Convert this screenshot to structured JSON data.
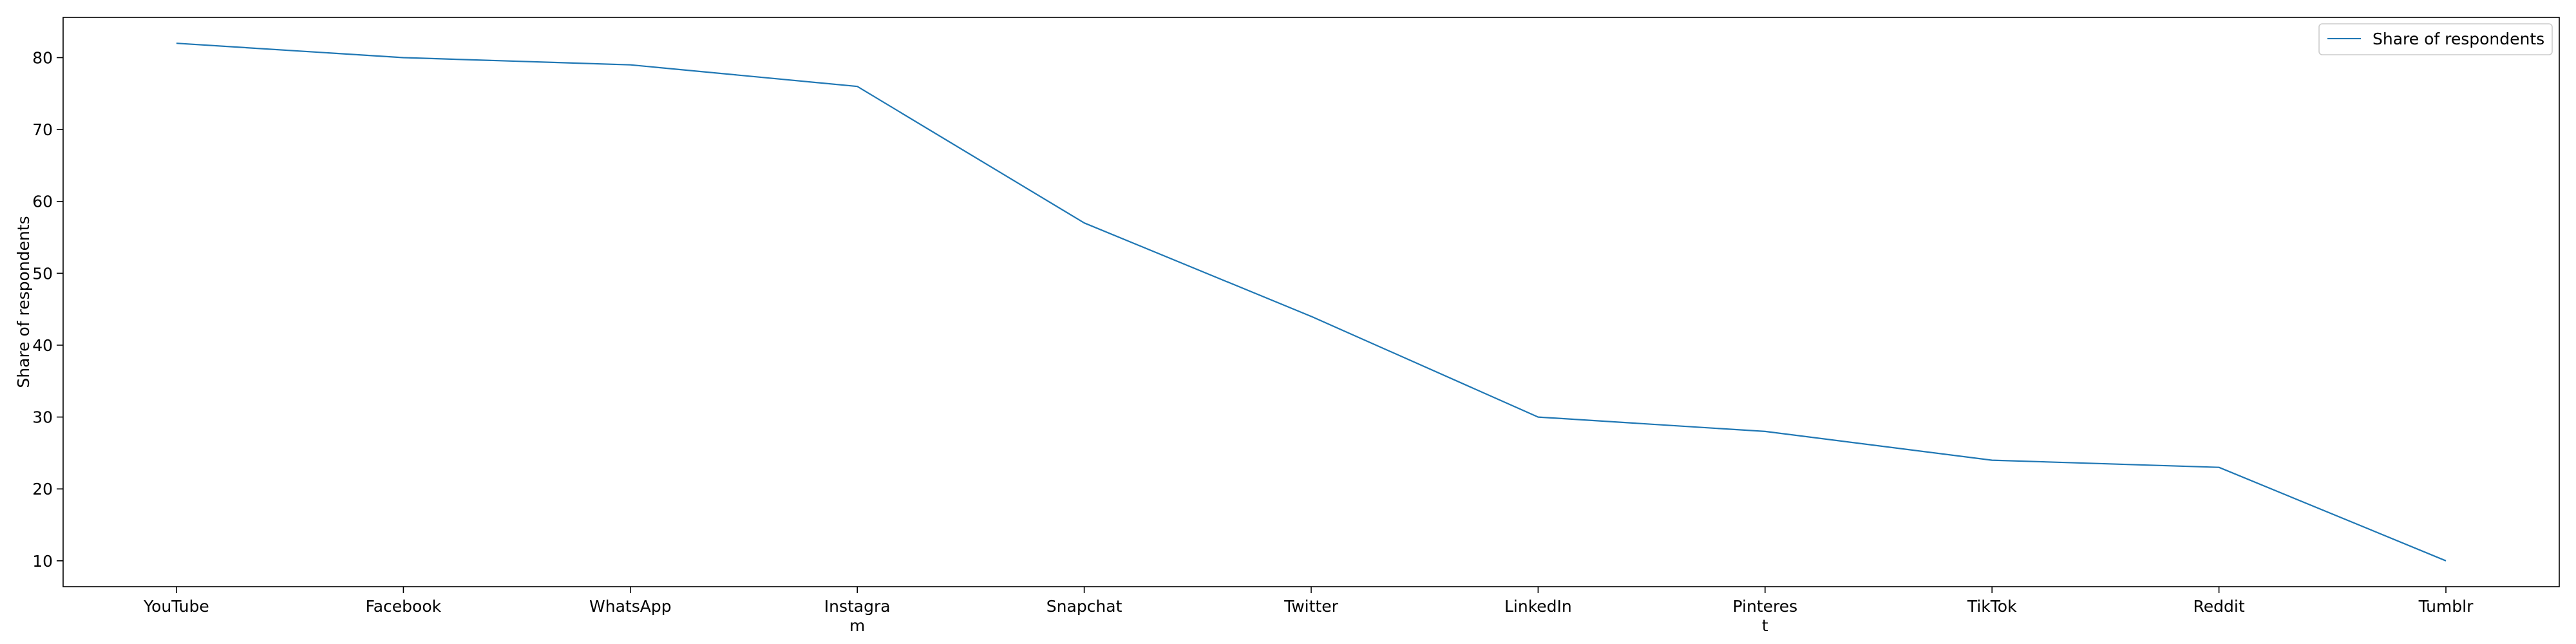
{
  "chart_data": {
    "type": "line",
    "title": "",
    "xlabel": "",
    "ylabel": "Share of respondents",
    "categories": [
      "YouTube",
      "Facebook",
      "WhatsApp",
      "Instagram",
      "Snapchat",
      "Twitter",
      "LinkedIn",
      "Pinterest",
      "TikTok",
      "Reddit",
      "Tumblr"
    ],
    "category_display": [
      [
        "YouTube"
      ],
      [
        "Facebook"
      ],
      [
        "WhatsApp"
      ],
      [
        "Instagra",
        "m"
      ],
      [
        "Snapchat"
      ],
      [
        "Twitter"
      ],
      [
        "LinkedIn"
      ],
      [
        "Pinteres",
        "t"
      ],
      [
        "TikTok"
      ],
      [
        "Reddit"
      ],
      [
        "Tumblr"
      ]
    ],
    "series": [
      {
        "name": "Share of respondents",
        "color": "#1f77b4",
        "values": [
          82,
          80,
          79,
          76,
          57,
          44,
          30,
          28,
          24,
          23,
          10
        ]
      }
    ],
    "ylim": [
      6.4,
      85.6
    ],
    "yticks": [
      10,
      20,
      30,
      40,
      50,
      60,
      70,
      80
    ],
    "grid": false,
    "legend": "top-right"
  }
}
